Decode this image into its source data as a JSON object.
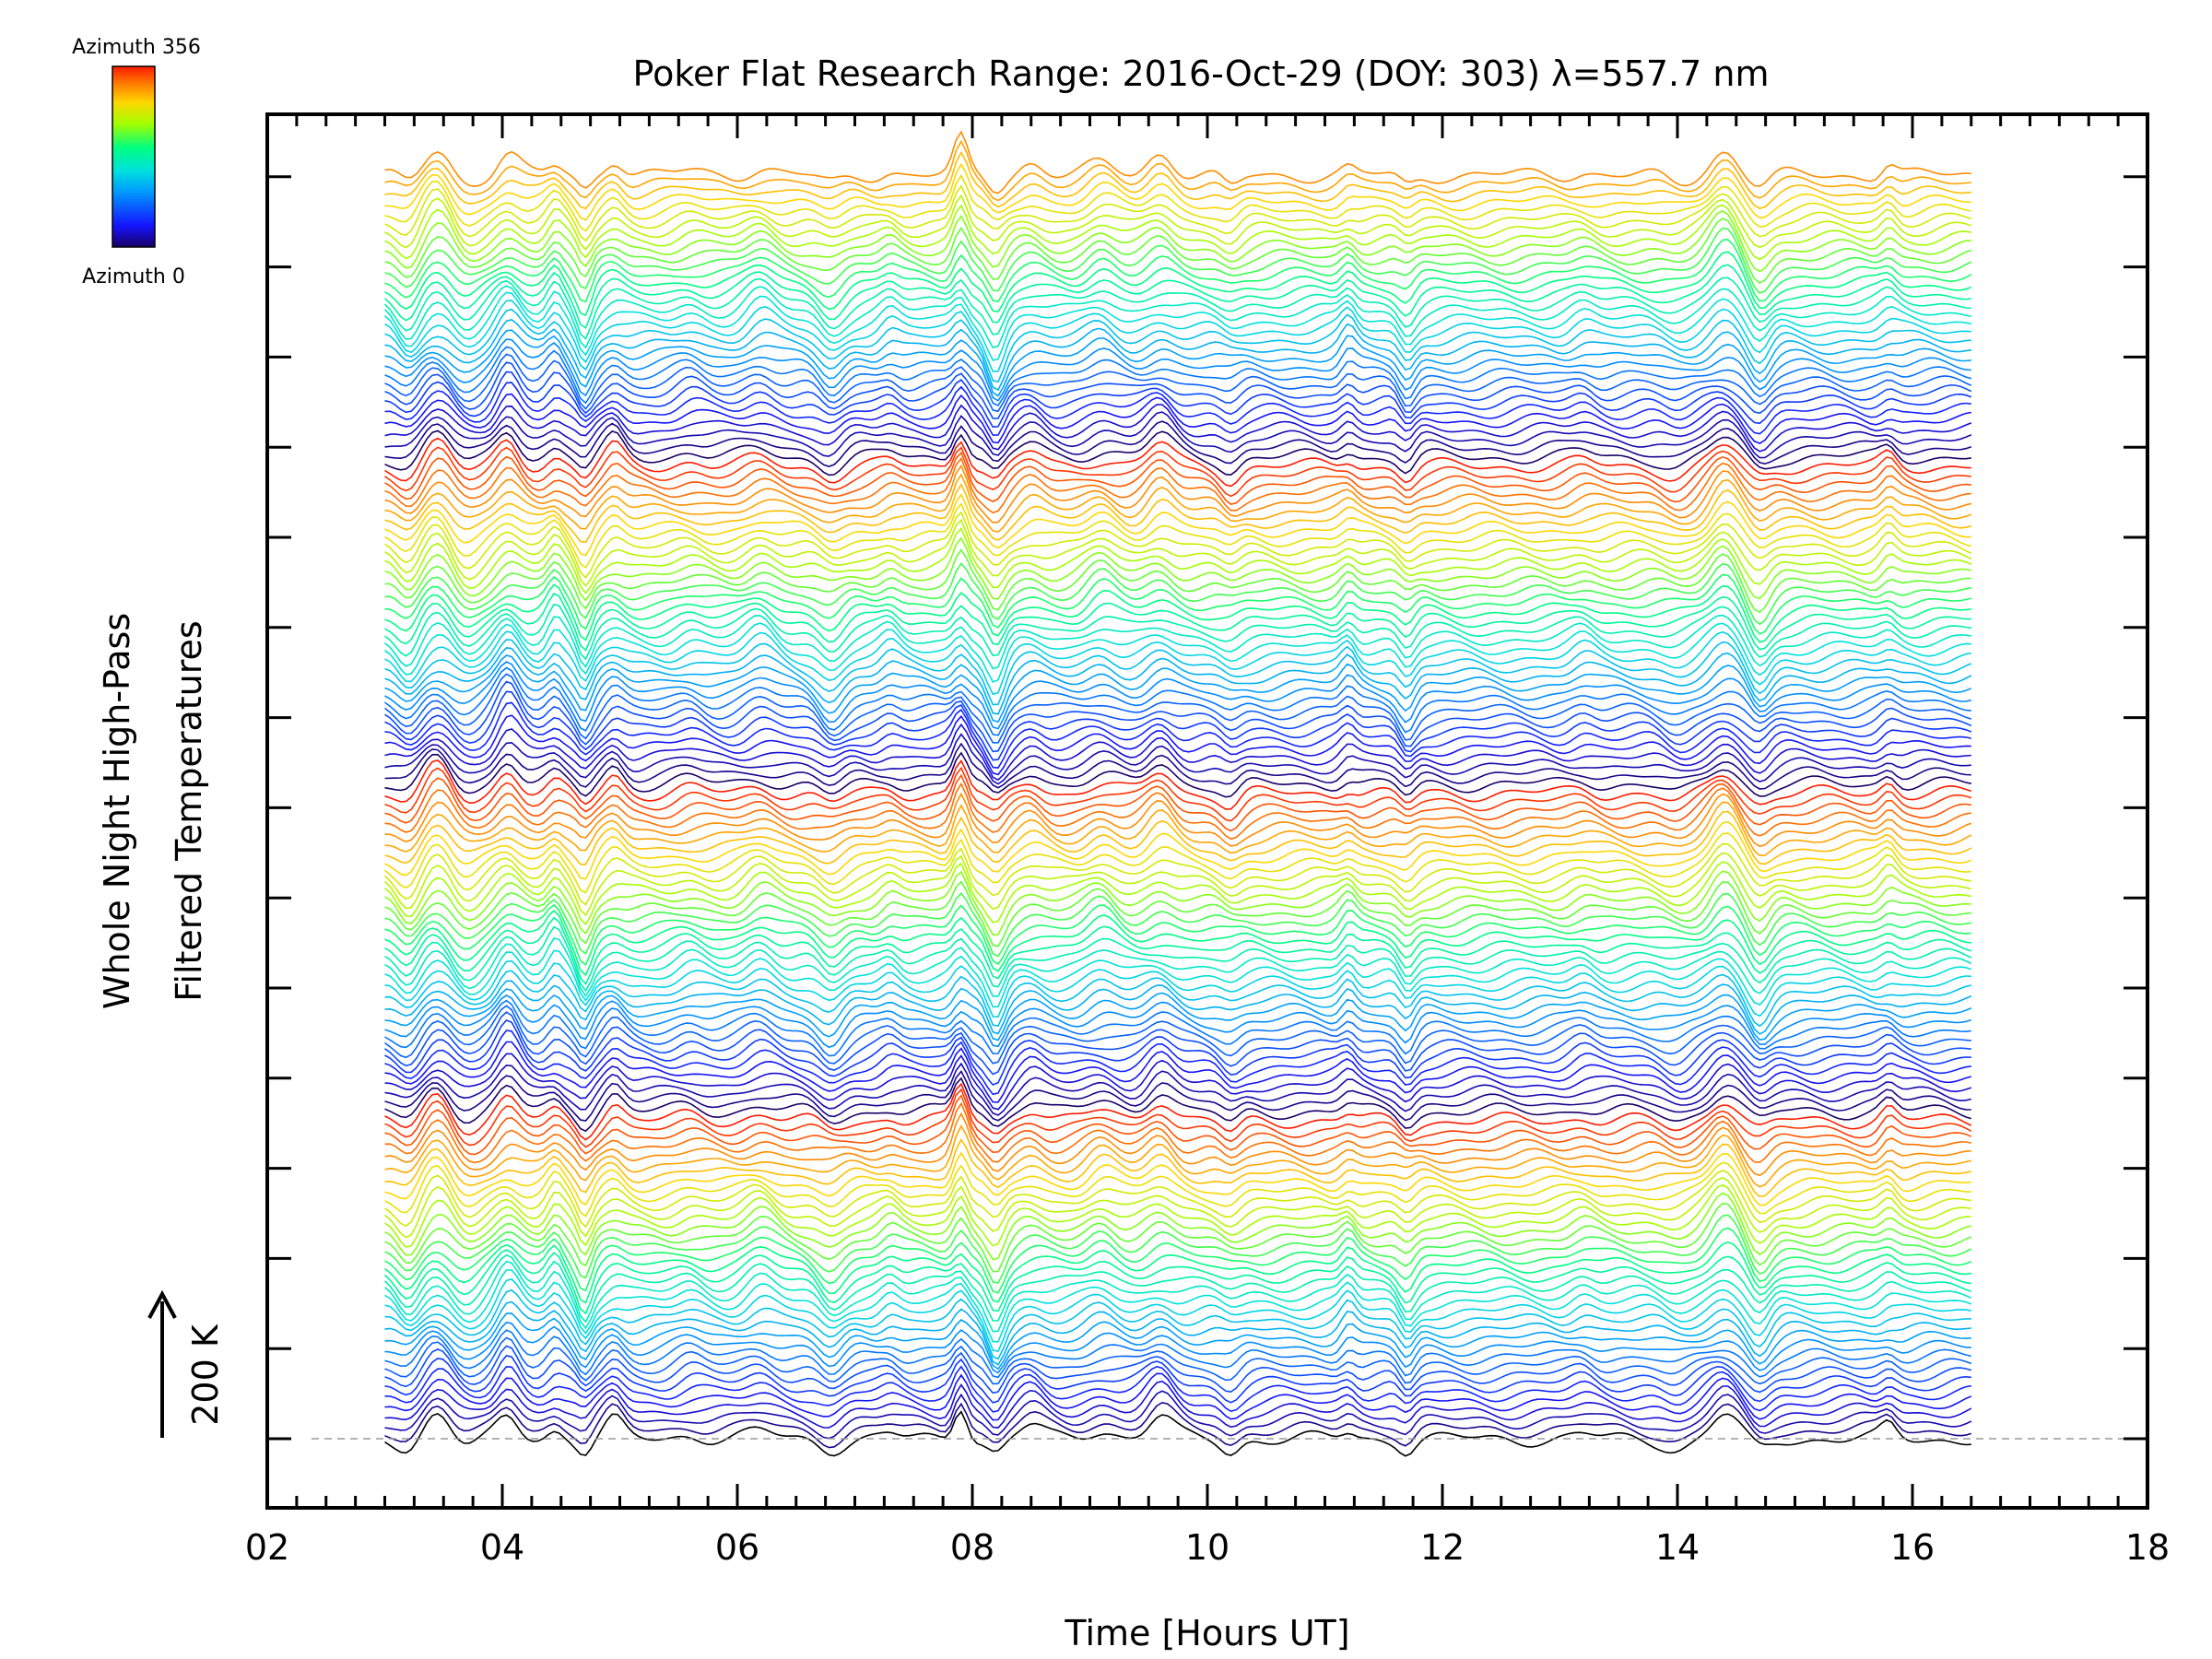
{
  "chart_data": {
    "type": "line",
    "title": "Poker Flat Research Range: 2016-Oct-29 (DOY: 303) λ=557.7 nm",
    "xlabel": "Time [Hours UT]",
    "ylabel_line1": "Whole Night High-Pass",
    "ylabel_line2": "Filtered Temperatures",
    "xlim": [
      2,
      18
    ],
    "x_ticks": [
      "02",
      "04",
      "06",
      "08",
      "10",
      "12",
      "14",
      "16",
      "18"
    ],
    "x_data_range": [
      3.0,
      16.5
    ],
    "scale_bar_label": "200 K",
    "colorbar": {
      "top_label": "Azimuth 356",
      "bottom_label": "Azimuth 0",
      "min": 0,
      "max": 356,
      "colormap": "rainbow"
    },
    "series_description": "Stacked high-pass filtered temperature traces for each azimuth, colored by azimuth (0 to 356), offset vertically; approx. 140 traces.",
    "num_traces": 140,
    "azimuth_cycle": 36,
    "features": [
      {
        "time": 3.2,
        "amp": -25
      },
      {
        "time": 3.45,
        "amp": 30
      },
      {
        "time": 3.7,
        "amp": -20
      },
      {
        "time": 4.05,
        "amp": 35
      },
      {
        "time": 4.45,
        "amp": 25
      },
      {
        "time": 4.7,
        "amp": -35
      },
      {
        "time": 4.95,
        "amp": 20
      },
      {
        "time": 5.6,
        "amp": 10
      },
      {
        "time": 6.2,
        "amp": 20
      },
      {
        "time": 6.8,
        "amp": -25
      },
      {
        "time": 7.3,
        "amp": 12
      },
      {
        "time": 7.9,
        "amp": 40
      },
      {
        "time": 8.2,
        "amp": -40
      },
      {
        "time": 8.5,
        "amp": 15
      },
      {
        "time": 9.1,
        "amp": 20
      },
      {
        "time": 9.6,
        "amp": 25
      },
      {
        "time": 10.2,
        "amp": -15
      },
      {
        "time": 11.2,
        "amp": 18
      },
      {
        "time": 11.7,
        "amp": -25
      },
      {
        "time": 13.2,
        "amp": 10
      },
      {
        "time": 14.0,
        "amp": -12
      },
      {
        "time": 14.4,
        "amp": 35
      },
      {
        "time": 14.7,
        "amp": -30
      },
      {
        "time": 15.8,
        "amp": 15
      }
    ],
    "colors": {
      "axis": "#000000",
      "baseline": "#999999",
      "background": "#ffffff"
    }
  }
}
